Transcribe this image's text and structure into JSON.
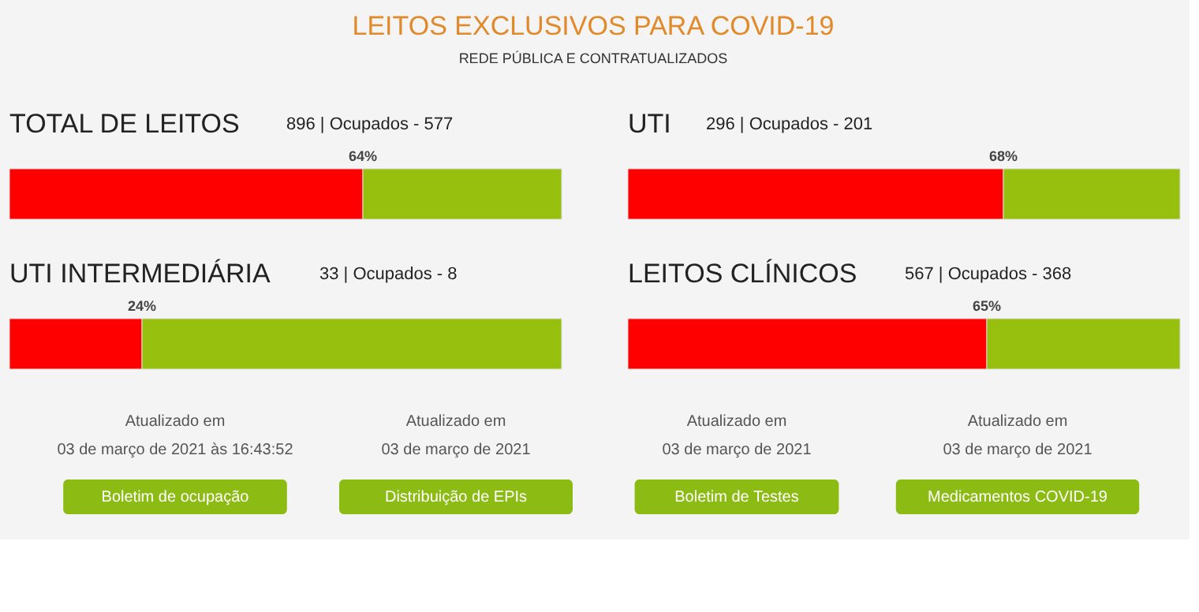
{
  "chart_data": [
    {
      "type": "other",
      "title": "LEITOS EXCLUSIVOS PARA COVID-19",
      "subtitle": "REDE PÚBLICA E CONTRATUALIZADOS"
    },
    {
      "type": "bar",
      "orientation": "horizontal",
      "stacked": true,
      "xlim": [
        0,
        100
      ],
      "tick_labels": false,
      "title": "TOTAL DE LEITOS",
      "subtitle": "896 | Ocupados - 577",
      "categories": [
        null
      ],
      "series": [
        {
          "color": "#ff0000",
          "values": [
            64
          ],
          "value_labels": [
            "64%"
          ]
        },
        {
          "color": "#97bf0d",
          "values": [
            36
          ]
        }
      ]
    },
    {
      "type": "bar",
      "orientation": "horizontal",
      "stacked": true,
      "xlim": [
        0,
        100
      ],
      "tick_labels": false,
      "title": "UTI",
      "subtitle": "296 | Ocupados - 201",
      "categories": [
        null
      ],
      "series": [
        {
          "color": "#ff0000",
          "values": [
            68
          ],
          "value_labels": [
            "68%"
          ]
        },
        {
          "color": "#97bf0d",
          "values": [
            32
          ]
        }
      ]
    },
    {
      "type": "bar",
      "orientation": "horizontal",
      "stacked": true,
      "xlim": [
        0,
        100
      ],
      "tick_labels": false,
      "title": "UTI INTERMEDIÁRIA",
      "subtitle": "33 | Ocupados - 8",
      "categories": [
        null
      ],
      "series": [
        {
          "color": "#ff0000",
          "values": [
            24
          ],
          "value_labels": [
            "24%"
          ]
        },
        {
          "color": "#97bf0d",
          "values": [
            76
          ]
        }
      ]
    },
    {
      "type": "bar",
      "orientation": "horizontal",
      "stacked": true,
      "xlim": [
        0,
        100
      ],
      "tick_labels": false,
      "title": "LEITOS CLÍNICOS",
      "subtitle": "567 | Ocupados - 368",
      "categories": [
        null
      ],
      "series": [
        {
          "color": "#ff0000",
          "values": [
            65
          ],
          "value_labels": [
            "65%"
          ]
        },
        {
          "color": "#97bf0d",
          "values": [
            35
          ]
        }
      ]
    },
    {
      "type": "other",
      "annotations": [
        "Atualizado em",
        "03 de março de 2021 às 16:43:52",
        "Boletim de ocupação",
        "Atualizado em",
        "03 de março de 2021",
        "Distribuição de EPIs",
        "Atualizado em",
        "03 de março de 2021",
        "Boletim de Testes",
        "Atualizado em",
        "03 de março de 2021",
        "Medicamentos COVID-19"
      ]
    }
  ]
}
